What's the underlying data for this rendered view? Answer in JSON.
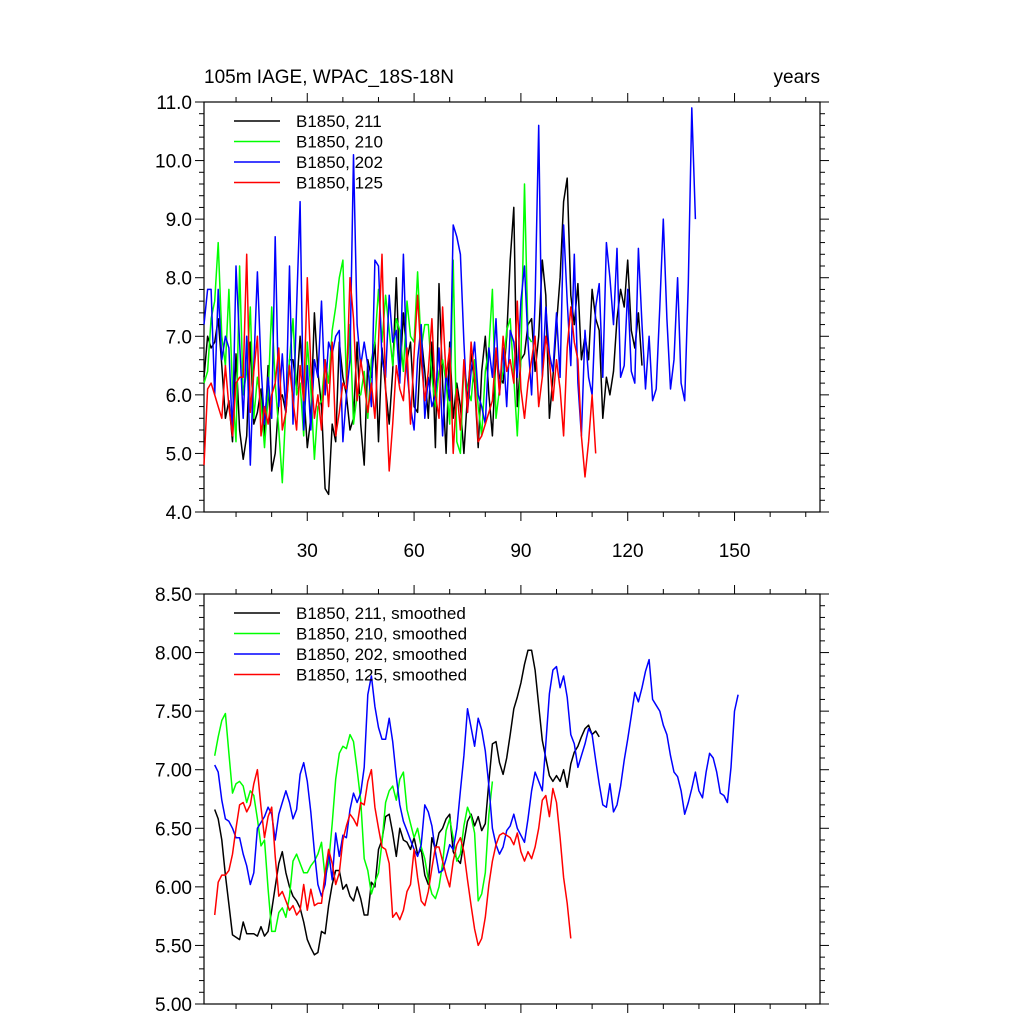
{
  "chart_data": [
    {
      "type": "line",
      "title": "105m IAGE, WPAC_18S-18N",
      "units_label": "years",
      "xlabel": "",
      "ylabel": "",
      "xlim": [
        1,
        174
      ],
      "ylim": [
        4.0,
        11.0
      ],
      "xticks": [
        30,
        60,
        90,
        120,
        150
      ],
      "xtick_labels": [
        "30",
        "60",
        "90",
        "120",
        "150"
      ],
      "yticks": [
        4.0,
        5.0,
        6.0,
        7.0,
        8.0,
        9.0,
        10.0,
        11.0
      ],
      "ytick_labels": [
        "4.0",
        "5.0",
        "6.0",
        "7.0",
        "8.0",
        "9.0",
        "10.0",
        "11.0"
      ],
      "legend_position": "top-left",
      "series": [
        {
          "name": "B1850, 211",
          "color": "#000000",
          "x_start": 1,
          "values": [
            6.3,
            7.0,
            6.8,
            6.9,
            7.3,
            6.5,
            5.6,
            5.9,
            5.2,
            6.7,
            5.4,
            4.9,
            5.3,
            6.9,
            5.5,
            5.7,
            6.1,
            5.3,
            6.5,
            4.7,
            5.0,
            5.9,
            6.0,
            5.7,
            6.6,
            6.6,
            6.1,
            7.0,
            6.1,
            5.1,
            5.6,
            7.4,
            6.4,
            5.8,
            4.4,
            4.3,
            5.5,
            5.2,
            6.9,
            6.3,
            6.0,
            5.4,
            5.6,
            6.9,
            5.5,
            4.8,
            6.6,
            6.3,
            6.9,
            5.2,
            6.8,
            6.1,
            5.5,
            6.4,
            8.0,
            6.3,
            7.4,
            6.6,
            6.9,
            5.8,
            5.7,
            7.0,
            6.4,
            5.6,
            6.9,
            5.1,
            7.9,
            6.2,
            5.0,
            6.9,
            5.6,
            6.2,
            5.8,
            5.0,
            6.0,
            6.7,
            6.2,
            5.1,
            6.4,
            7.0,
            6.0,
            5.3,
            6.7,
            6.3,
            6.2,
            7.0,
            8.3,
            9.2,
            5.8,
            6.6,
            6.7,
            7.2,
            7.3,
            6.4,
            7.0,
            8.3,
            7.7,
            5.6,
            6.3,
            7.2,
            8.0,
            9.3,
            9.7,
            7.7,
            7.2,
            7.9,
            6.6,
            7.0,
            6.6,
            7.8,
            7.3,
            7.1,
            5.6,
            6.3,
            6.0,
            6.4,
            7.3,
            7.8,
            7.5,
            8.3,
            7.1,
            6.8,
            7.4,
            6.5
          ]
        },
        {
          "name": "B1850, 210",
          "color": "#00ff00",
          "x_start": 1,
          "values": [
            6.2,
            6.4,
            7.3,
            7.6,
            8.6,
            7.0,
            6.5,
            7.8,
            6.1,
            5.2,
            8.2,
            6.0,
            6.4,
            7.5,
            5.6,
            6.3,
            5.9,
            5.1,
            6.0,
            7.5,
            6.2,
            5.4,
            4.5,
            5.8,
            6.6,
            7.3,
            6.0,
            6.2,
            5.3,
            6.9,
            6.1,
            4.9,
            5.8,
            5.9,
            6.6,
            6.2,
            7.1,
            7.5,
            8.0,
            8.3,
            6.2,
            7.2,
            5.5,
            6.0,
            6.0,
            6.4,
            5.6,
            6.6,
            6.9,
            7.8,
            6.9,
            7.7,
            7.1,
            6.5,
            7.3,
            7.1,
            6.4,
            7.6,
            7.0,
            6.9,
            8.1,
            6.8,
            7.2,
            7.2,
            6.3,
            5.8,
            6.4,
            6.6,
            6.2,
            5.5,
            8.3,
            5.2,
            5.0,
            6.5,
            6.1,
            5.9,
            6.6,
            5.8,
            5.3,
            6.4,
            6.8,
            7.8,
            5.6,
            6.1,
            6.4,
            7.1,
            7.3,
            6.3,
            5.3,
            6.6,
            9.6,
            7.0,
            6.9
          ]
        },
        {
          "name": "B1850, 202",
          "color": "#0000ff",
          "x_start": 1,
          "values": [
            7.2,
            7.8,
            7.8,
            6.0,
            7.8,
            6.6,
            7.0,
            6.8,
            5.3,
            8.2,
            6.9,
            5.6,
            7.0,
            4.8,
            6.5,
            8.1,
            6.5,
            5.5,
            6.3,
            5.6,
            8.7,
            5.8,
            6.7,
            5.7,
            8.2,
            5.5,
            7.5,
            9.3,
            5.4,
            6.5,
            5.4,
            6.6,
            6.3,
            7.6,
            6.0,
            6.9,
            6.7,
            7.0,
            7.1,
            5.2,
            6.0,
            6.6,
            10.1,
            7.2,
            6.5,
            6.9,
            6.5,
            5.8,
            8.3,
            8.2,
            6.6,
            6.3,
            7.7,
            6.9,
            7.1,
            6.2,
            8.4,
            6.4,
            5.8,
            5.4,
            6.6,
            7.2,
            5.6,
            6.3,
            5.8,
            6.0,
            6.8,
            5.3,
            6.4,
            5.9,
            8.9,
            8.7,
            8.4,
            6.9,
            5.7,
            6.4,
            6.9,
            6.0,
            5.8,
            5.5,
            6.8,
            6.3,
            7.3,
            6.0,
            6.8,
            5.8,
            7.1,
            6.9,
            6.3,
            7.6,
            8.2,
            6.9,
            6.0,
            7.6,
            10.6,
            6.3,
            7.5,
            6.7,
            6.4,
            7.4,
            6.3,
            8.9,
            7.6,
            6.5,
            8.4,
            6.2,
            5.3,
            7.1,
            6.3,
            6.0,
            7.5,
            7.9,
            6.3,
            8.6,
            8.0,
            7.2,
            8.5,
            6.3,
            6.5,
            7.8,
            6.4,
            6.2,
            8.5,
            7.2,
            6.1,
            7.0,
            5.9,
            6.1,
            7.5,
            9.0,
            7.3,
            6.1,
            6.6,
            8.0,
            6.2,
            5.9,
            7.9,
            10.9,
            9.0
          ]
        },
        {
          "name": "B1850, 125",
          "color": "#ff0000",
          "x_start": 1,
          "values": [
            4.8,
            6.1,
            6.2,
            6.0,
            5.8,
            5.6,
            6.5,
            5.8,
            5.3,
            6.2,
            6.3,
            6.3,
            8.4,
            5.7,
            6.4,
            7.0,
            5.3,
            5.8,
            5.5,
            6.0,
            6.2,
            6.8,
            5.4,
            5.7,
            6.5,
            5.9,
            5.4,
            6.5,
            5.9,
            8.0,
            6.5,
            5.6,
            6.0,
            5.4,
            6.6,
            5.8,
            6.9,
            5.3,
            5.7,
            6.2,
            6.1,
            8.0,
            7.3,
            5.9,
            6.6,
            6.2,
            5.7,
            6.2,
            5.6,
            6.9,
            8.4,
            6.1,
            4.7,
            5.5,
            6.5,
            6.1,
            5.9,
            6.8,
            5.5,
            6.7,
            7.7,
            6.6,
            5.9,
            6.4,
            7.3,
            6.0,
            5.6,
            7.5,
            6.3,
            6.8,
            5.0,
            6.1,
            5.4,
            6.6,
            5.7,
            6.9,
            6.3,
            5.2,
            5.3,
            5.5,
            5.7,
            5.9,
            6.8,
            6.0,
            7.0,
            6.4,
            6.6,
            6.2,
            7.6,
            6.1,
            5.6,
            6.2,
            6.6,
            7.0,
            5.8,
            6.3,
            7.0,
            6.6,
            5.9,
            6.6,
            6.1,
            5.3,
            6.8,
            7.5,
            6.9,
            6.6,
            5.3,
            4.6,
            5.2,
            6.0,
            5.0
          ]
        }
      ]
    },
    {
      "type": "line",
      "title": "",
      "xlabel": "",
      "ylabel": "",
      "xlim": [
        1,
        174
      ],
      "ylim": [
        5.0,
        8.5
      ],
      "xticks": [
        30,
        60,
        90,
        120,
        150
      ],
      "xtick_labels": [],
      "yticks": [
        5.0,
        5.5,
        6.0,
        6.5,
        7.0,
        7.5,
        8.0,
        8.5
      ],
      "ytick_labels": [
        "5.00",
        "5.50",
        "6.00",
        "6.50",
        "7.00",
        "7.50",
        "8.00",
        "8.50"
      ],
      "legend_position": "top-left",
      "series": [
        {
          "name": "B1850, 211, smoothed",
          "color": "#000000",
          "x_start": 4,
          "values": [
            6.66,
            6.58,
            6.4,
            6.1,
            5.85,
            5.59,
            5.57,
            5.55,
            5.7,
            5.6,
            5.6,
            5.6,
            5.58,
            5.66,
            5.58,
            5.62,
            5.8,
            6.0,
            6.2,
            6.3,
            6.12,
            6.0,
            5.92,
            5.88,
            5.82,
            5.7,
            5.55,
            5.48,
            5.42,
            5.44,
            5.62,
            5.6,
            5.84,
            6.02,
            6.14,
            6.14,
            5.98,
            6.02,
            5.92,
            5.88,
            6.0,
            5.9,
            5.76,
            5.76,
            6.04,
            6.0,
            6.32,
            6.4,
            6.6,
            6.62,
            6.46,
            6.26,
            6.5,
            6.4,
            6.38,
            6.32,
            6.42,
            6.28,
            6.32,
            6.1,
            6.02,
            6.42,
            6.32,
            6.46,
            6.5,
            6.58,
            6.62,
            6.3,
            6.24,
            6.2,
            6.38,
            6.56,
            6.62,
            6.52,
            6.6,
            6.48,
            6.54,
            6.9,
            7.22,
            7.24,
            7.06,
            6.96,
            7.1,
            7.3,
            7.52,
            7.62,
            7.74,
            7.9,
            8.02,
            8.02,
            7.85,
            7.55,
            7.25,
            7.1,
            6.95,
            6.9,
            6.95,
            6.9,
            7.0,
            6.85,
            7.05,
            7.15,
            7.2,
            7.28,
            7.35,
            7.38,
            7.3,
            7.33,
            7.28
          ]
        },
        {
          "name": "B1850, 210, smoothed",
          "color": "#00ff00",
          "x_start": 4,
          "values": [
            7.12,
            7.28,
            7.42,
            7.48,
            7.14,
            6.8,
            6.88,
            6.9,
            6.86,
            6.72,
            6.82,
            6.78,
            6.58,
            6.35,
            6.4,
            5.98,
            5.62,
            5.62,
            5.78,
            5.82,
            5.74,
            5.92,
            6.22,
            6.28,
            6.2,
            6.12,
            6.12,
            6.18,
            6.22,
            6.28,
            6.38,
            6.08,
            6.2,
            6.54,
            6.92,
            7.14,
            7.2,
            7.18,
            7.3,
            7.24,
            7.0,
            6.74,
            6.24,
            6.14,
            5.94,
            6.04,
            6.12,
            6.38,
            6.72,
            6.82,
            6.86,
            6.74,
            6.92,
            6.98,
            6.66,
            6.54,
            6.42,
            6.5,
            6.34,
            6.24,
            6.06,
            5.94,
            5.9,
            6.0,
            6.2,
            6.48,
            6.58,
            6.42,
            6.22,
            6.28,
            6.52,
            6.68,
            6.6,
            6.46,
            5.88,
            5.94,
            6.12,
            6.62,
            6.9
          ]
        },
        {
          "name": "B1850, 202, smoothed",
          "color": "#0000ff",
          "x_start": 4,
          "values": [
            7.04,
            6.98,
            6.74,
            6.58,
            6.56,
            6.5,
            6.42,
            6.42,
            6.28,
            6.18,
            6.02,
            6.12,
            6.5,
            6.55,
            6.6,
            6.68,
            6.62,
            6.4,
            6.62,
            6.72,
            6.82,
            6.72,
            6.58,
            6.66,
            6.96,
            7.06,
            6.9,
            6.64,
            6.3,
            6.02,
            5.92,
            6.02,
            6.3,
            6.06,
            6.46,
            6.26,
            6.44,
            6.42,
            6.66,
            6.8,
            6.72,
            6.8,
            7.02,
            7.64,
            7.8,
            7.54,
            7.36,
            7.26,
            7.26,
            7.44,
            7.24,
            6.94,
            6.7,
            6.56,
            6.48,
            6.4,
            6.32,
            6.26,
            6.36,
            6.7,
            6.64,
            6.52,
            6.3,
            6.12,
            6.14,
            6.24,
            6.36,
            6.32,
            6.5,
            6.82,
            7.12,
            7.52,
            7.36,
            7.2,
            7.44,
            7.34,
            7.16,
            6.86,
            6.5,
            6.36,
            6.28,
            6.34,
            6.48,
            6.52,
            6.62,
            6.5,
            6.44,
            6.38,
            6.58,
            6.82,
            6.98,
            6.9,
            6.82,
            7.22,
            7.65,
            7.85,
            7.88,
            7.7,
            7.8,
            7.62,
            7.3,
            7.22,
            7.02,
            7.12,
            7.22,
            7.35,
            7.3,
            7.08,
            6.88,
            6.7,
            6.68,
            6.88,
            6.64,
            6.7,
            6.86,
            7.08,
            7.26,
            7.46,
            7.66,
            7.58,
            7.7,
            7.84,
            7.94,
            7.6,
            7.55,
            7.5,
            7.38,
            7.3,
            7.12,
            6.98,
            6.94,
            6.82,
            6.62,
            6.72,
            6.84,
            6.98,
            6.82,
            6.76,
            6.98,
            7.14,
            7.1,
            6.98,
            6.8,
            6.78,
            6.72,
            7.02,
            7.5,
            7.64
          ]
        },
        {
          "name": "B1850, 125, smoothed",
          "color": "#ff0000",
          "x_start": 4,
          "values": [
            5.76,
            6.04,
            6.1,
            6.1,
            6.14,
            6.28,
            6.5,
            6.7,
            6.72,
            6.64,
            6.7,
            6.88,
            7.0,
            6.68,
            6.42,
            6.6,
            6.68,
            6.26,
            5.92,
            5.96,
            5.88,
            5.8,
            5.84,
            5.76,
            5.8,
            6.02,
            5.8,
            5.98,
            5.84,
            5.86,
            5.86,
            6.12,
            6.32,
            6.2,
            6.02,
            6.12,
            6.4,
            6.52,
            6.62,
            6.58,
            6.52,
            6.72,
            6.7,
            6.9,
            7.0,
            6.68,
            6.5,
            6.34,
            6.32,
            6.2,
            5.74,
            5.78,
            5.72,
            5.8,
            5.96,
            6.02,
            6.32,
            6.08,
            5.88,
            5.84,
            5.96,
            6.16,
            6.34,
            6.34,
            6.22,
            6.1,
            6.0,
            6.22,
            6.36,
            6.42,
            6.3,
            6.06,
            5.84,
            5.64,
            5.5,
            5.56,
            5.74,
            6.02,
            6.22,
            6.36,
            6.44,
            6.46,
            6.44,
            6.42,
            6.36,
            6.46,
            6.3,
            6.22,
            6.3,
            6.24,
            6.34,
            6.5,
            6.74,
            6.78,
            6.6,
            6.84,
            6.72,
            6.42,
            6.08,
            5.86,
            5.56
          ]
        }
      ]
    }
  ]
}
